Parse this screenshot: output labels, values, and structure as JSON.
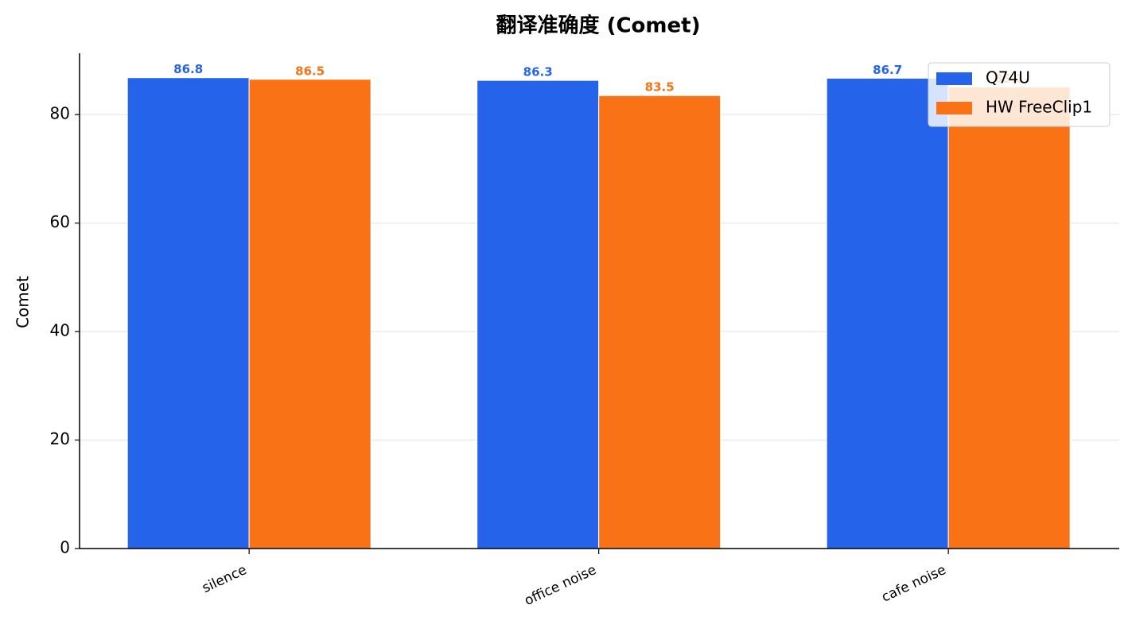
{
  "chart_data": {
    "type": "bar",
    "title": "翻译准确度 (Comet)",
    "y_label": "Comet",
    "categories": [
      "silence",
      "office noise",
      "cafe noise"
    ],
    "series": [
      {
        "name": "Q74U",
        "color": "#2563eb",
        "values": [
          86.8,
          86.3,
          86.7
        ]
      },
      {
        "name": "HW FreeClip1",
        "color": "#f97316",
        "values": [
          86.5,
          83.5,
          85.1
        ]
      }
    ],
    "ylim": [
      0,
      91.3
    ],
    "yticks": [
      0,
      20,
      40,
      60,
      80
    ],
    "grid": true,
    "legend": "upper right"
  }
}
